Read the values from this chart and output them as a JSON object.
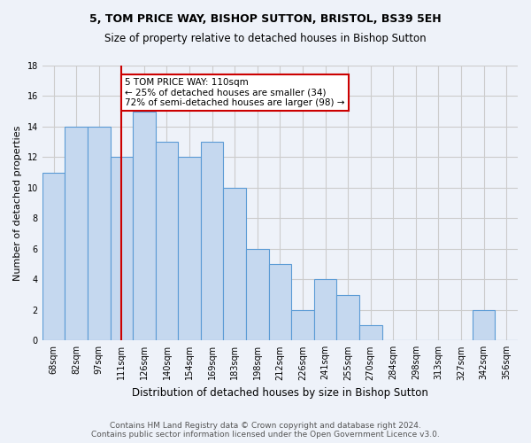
{
  "title": "5, TOM PRICE WAY, BISHOP SUTTON, BRISTOL, BS39 5EH",
  "subtitle": "Size of property relative to detached houses in Bishop Sutton",
  "xlabel": "Distribution of detached houses by size in Bishop Sutton",
  "ylabel": "Number of detached properties",
  "categories": [
    "68sqm",
    "82sqm",
    "97sqm",
    "111sqm",
    "126sqm",
    "140sqm",
    "154sqm",
    "169sqm",
    "183sqm",
    "198sqm",
    "212sqm",
    "226sqm",
    "241sqm",
    "255sqm",
    "270sqm",
    "284sqm",
    "298sqm",
    "313sqm",
    "327sqm",
    "342sqm",
    "356sqm"
  ],
  "values": [
    11,
    14,
    14,
    12,
    15,
    13,
    12,
    13,
    10,
    6,
    5,
    2,
    4,
    3,
    1,
    0,
    0,
    0,
    0,
    2,
    0
  ],
  "bar_color": "#c5d8ef",
  "bar_edge_color": "#5b9bd5",
  "annotation_text": "5 TOM PRICE WAY: 110sqm\n← 25% of detached houses are smaller (34)\n72% of semi-detached houses are larger (98) →",
  "annotation_box_color": "#ffffff",
  "annotation_box_edge_color": "#cc0000",
  "vline_color": "#cc0000",
  "footer_line1": "Contains HM Land Registry data © Crown copyright and database right 2024.",
  "footer_line2": "Contains public sector information licensed under the Open Government Licence v3.0.",
  "ylim": [
    0,
    18
  ],
  "yticks": [
    0,
    2,
    4,
    6,
    8,
    10,
    12,
    14,
    16,
    18
  ],
  "grid_color": "#cccccc",
  "bg_color": "#eef2f9",
  "vline_x_index": 3.0,
  "title_fontsize": 9,
  "subtitle_fontsize": 8.5,
  "ylabel_fontsize": 8,
  "xlabel_fontsize": 8.5,
  "tick_fontsize": 7,
  "annotation_fontsize": 7.5,
  "footer_fontsize": 6.5
}
